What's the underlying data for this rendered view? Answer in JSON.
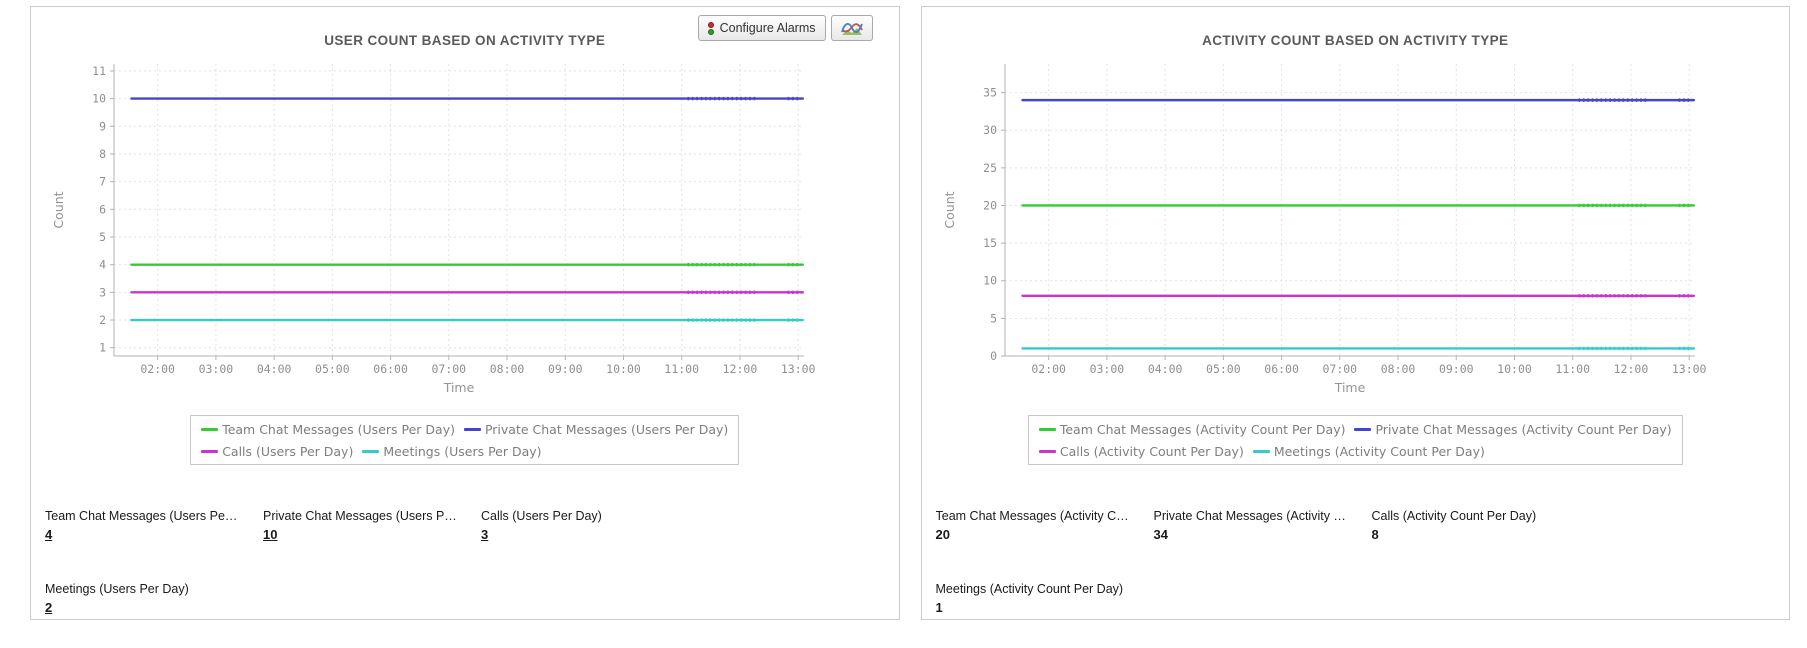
{
  "chart_data": [
    {
      "type": "line",
      "title": "USER COUNT BASED ON ACTIVITY TYPE",
      "xlabel": "Time",
      "ylabel": "Count",
      "x_ticks": [
        "02:00",
        "03:00",
        "04:00",
        "05:00",
        "06:00",
        "07:00",
        "08:00",
        "09:00",
        "10:00",
        "11:00",
        "12:00",
        "13:00"
      ],
      "xlim": [
        1.25,
        13.1
      ],
      "data_x": [
        1.55,
        13.08
      ],
      "dense_x": [
        [
          11.1,
          12.3
        ],
        [
          12.82,
          13.05
        ]
      ],
      "y_ticks": [
        1,
        2,
        3,
        4,
        5,
        6,
        7,
        8,
        9,
        10,
        11
      ],
      "ylim": [
        0.7,
        11.25
      ],
      "grid": "dashed",
      "legend_position": "bottom",
      "series": [
        {
          "name": "Team Chat Messages (Users Per Day)",
          "value": 4,
          "color": "#33cc33"
        },
        {
          "name": "Private Chat Messages (Users Per Day)",
          "value": 10,
          "color": "#4444cc"
        },
        {
          "name": "Calls (Users Per Day)",
          "value": 3,
          "color": "#cc33cc"
        },
        {
          "name": "Meetings (Users Per Day)",
          "value": 2,
          "color": "#33cccc"
        }
      ]
    },
    {
      "type": "line",
      "title": "ACTIVITY COUNT BASED ON ACTIVITY TYPE",
      "xlabel": "Time",
      "ylabel": "Count",
      "x_ticks": [
        "02:00",
        "03:00",
        "04:00",
        "05:00",
        "06:00",
        "07:00",
        "08:00",
        "09:00",
        "10:00",
        "11:00",
        "12:00",
        "13:00"
      ],
      "xlim": [
        1.25,
        13.1
      ],
      "data_x": [
        1.55,
        13.08
      ],
      "dense_x": [
        [
          11.1,
          12.3
        ],
        [
          12.82,
          13.05
        ]
      ],
      "y_ticks": [
        0,
        5,
        10,
        15,
        20,
        25,
        30,
        35
      ],
      "ylim": [
        0,
        38.8
      ],
      "grid": "dashed",
      "legend_position": "bottom",
      "series": [
        {
          "name": "Team Chat Messages (Activity Count Per Day)",
          "value": 20,
          "color": "#33cc33"
        },
        {
          "name": "Private Chat Messages (Activity Count Per Day)",
          "value": 34,
          "color": "#4444cc"
        },
        {
          "name": "Calls (Activity Count Per Day)",
          "value": 8,
          "color": "#cc33cc"
        },
        {
          "name": "Meetings (Activity Count Per Day)",
          "value": 1,
          "color": "#33cccc"
        }
      ]
    }
  ],
  "panels": [
    {
      "toolbar": {
        "buttons": [
          {
            "label": "Configure Alarms",
            "icon": "traffic-light-icon"
          },
          {
            "label": "",
            "icon": "line-chart-icon"
          }
        ]
      },
      "stats": [
        {
          "label": "Team Chat Messages (Users Pe…",
          "value": "4"
        },
        {
          "label": "Private Chat Messages (Users P…",
          "value": "10"
        },
        {
          "label": "Calls (Users Per Day)",
          "value": "3"
        },
        {
          "label": "Meetings (Users Per Day)",
          "value": "2"
        }
      ]
    },
    {
      "stats": [
        {
          "label": "Team Chat Messages (Activity C…",
          "value": "20"
        },
        {
          "label": "Private Chat Messages (Activity …",
          "value": "34"
        },
        {
          "label": "Calls (Activity Count Per Day)",
          "value": "8"
        },
        {
          "label": "Meetings (Activity Count Per Day)",
          "value": "1"
        }
      ]
    }
  ]
}
